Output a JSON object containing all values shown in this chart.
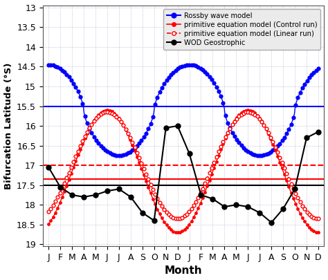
{
  "title": "",
  "xlabel": "Month",
  "ylabel": "Bifurcation Latitude (°S)",
  "ylim": [
    13.0,
    19.0
  ],
  "yticks": [
    13.0,
    13.5,
    14.0,
    14.5,
    15.0,
    15.5,
    16.0,
    16.5,
    17.0,
    17.5,
    18.0,
    18.5,
    19.0
  ],
  "month_labels": [
    "J",
    "F",
    "M",
    "A",
    "M",
    "J",
    "J",
    "A",
    "S",
    "O",
    "N",
    "D",
    "J",
    "F",
    "M",
    "A",
    "M",
    "J",
    "J",
    "A",
    "S",
    "O",
    "N",
    "D"
  ],
  "hline_blue": 15.5,
  "hline_red_solid": 17.35,
  "hline_red_dashed": 17.0,
  "hline_black": 17.5,
  "background_color": "#ffffff",
  "legend_bg": "#e8e8e8",
  "blue_color": "#0000ff",
  "red_color": "#ff0000",
  "black_color": "#000000",
  "blue_mean": 15.85,
  "blue_amp": 1.4,
  "blue_sharpness": 2.2,
  "red_solid_mean": 17.2,
  "red_solid_amp": 1.3,
  "red_dashed_mean": 17.0,
  "red_dashed_amp": 1.1,
  "wod_y": [
    17.05,
    17.55,
    17.75,
    17.8,
    17.75,
    17.65,
    17.6,
    17.8,
    18.2,
    18.4,
    16.05,
    16.0,
    16.7,
    17.75,
    17.85,
    18.05,
    18.0,
    18.05,
    18.2,
    18.45,
    18.1,
    17.6,
    16.3,
    16.15
  ]
}
